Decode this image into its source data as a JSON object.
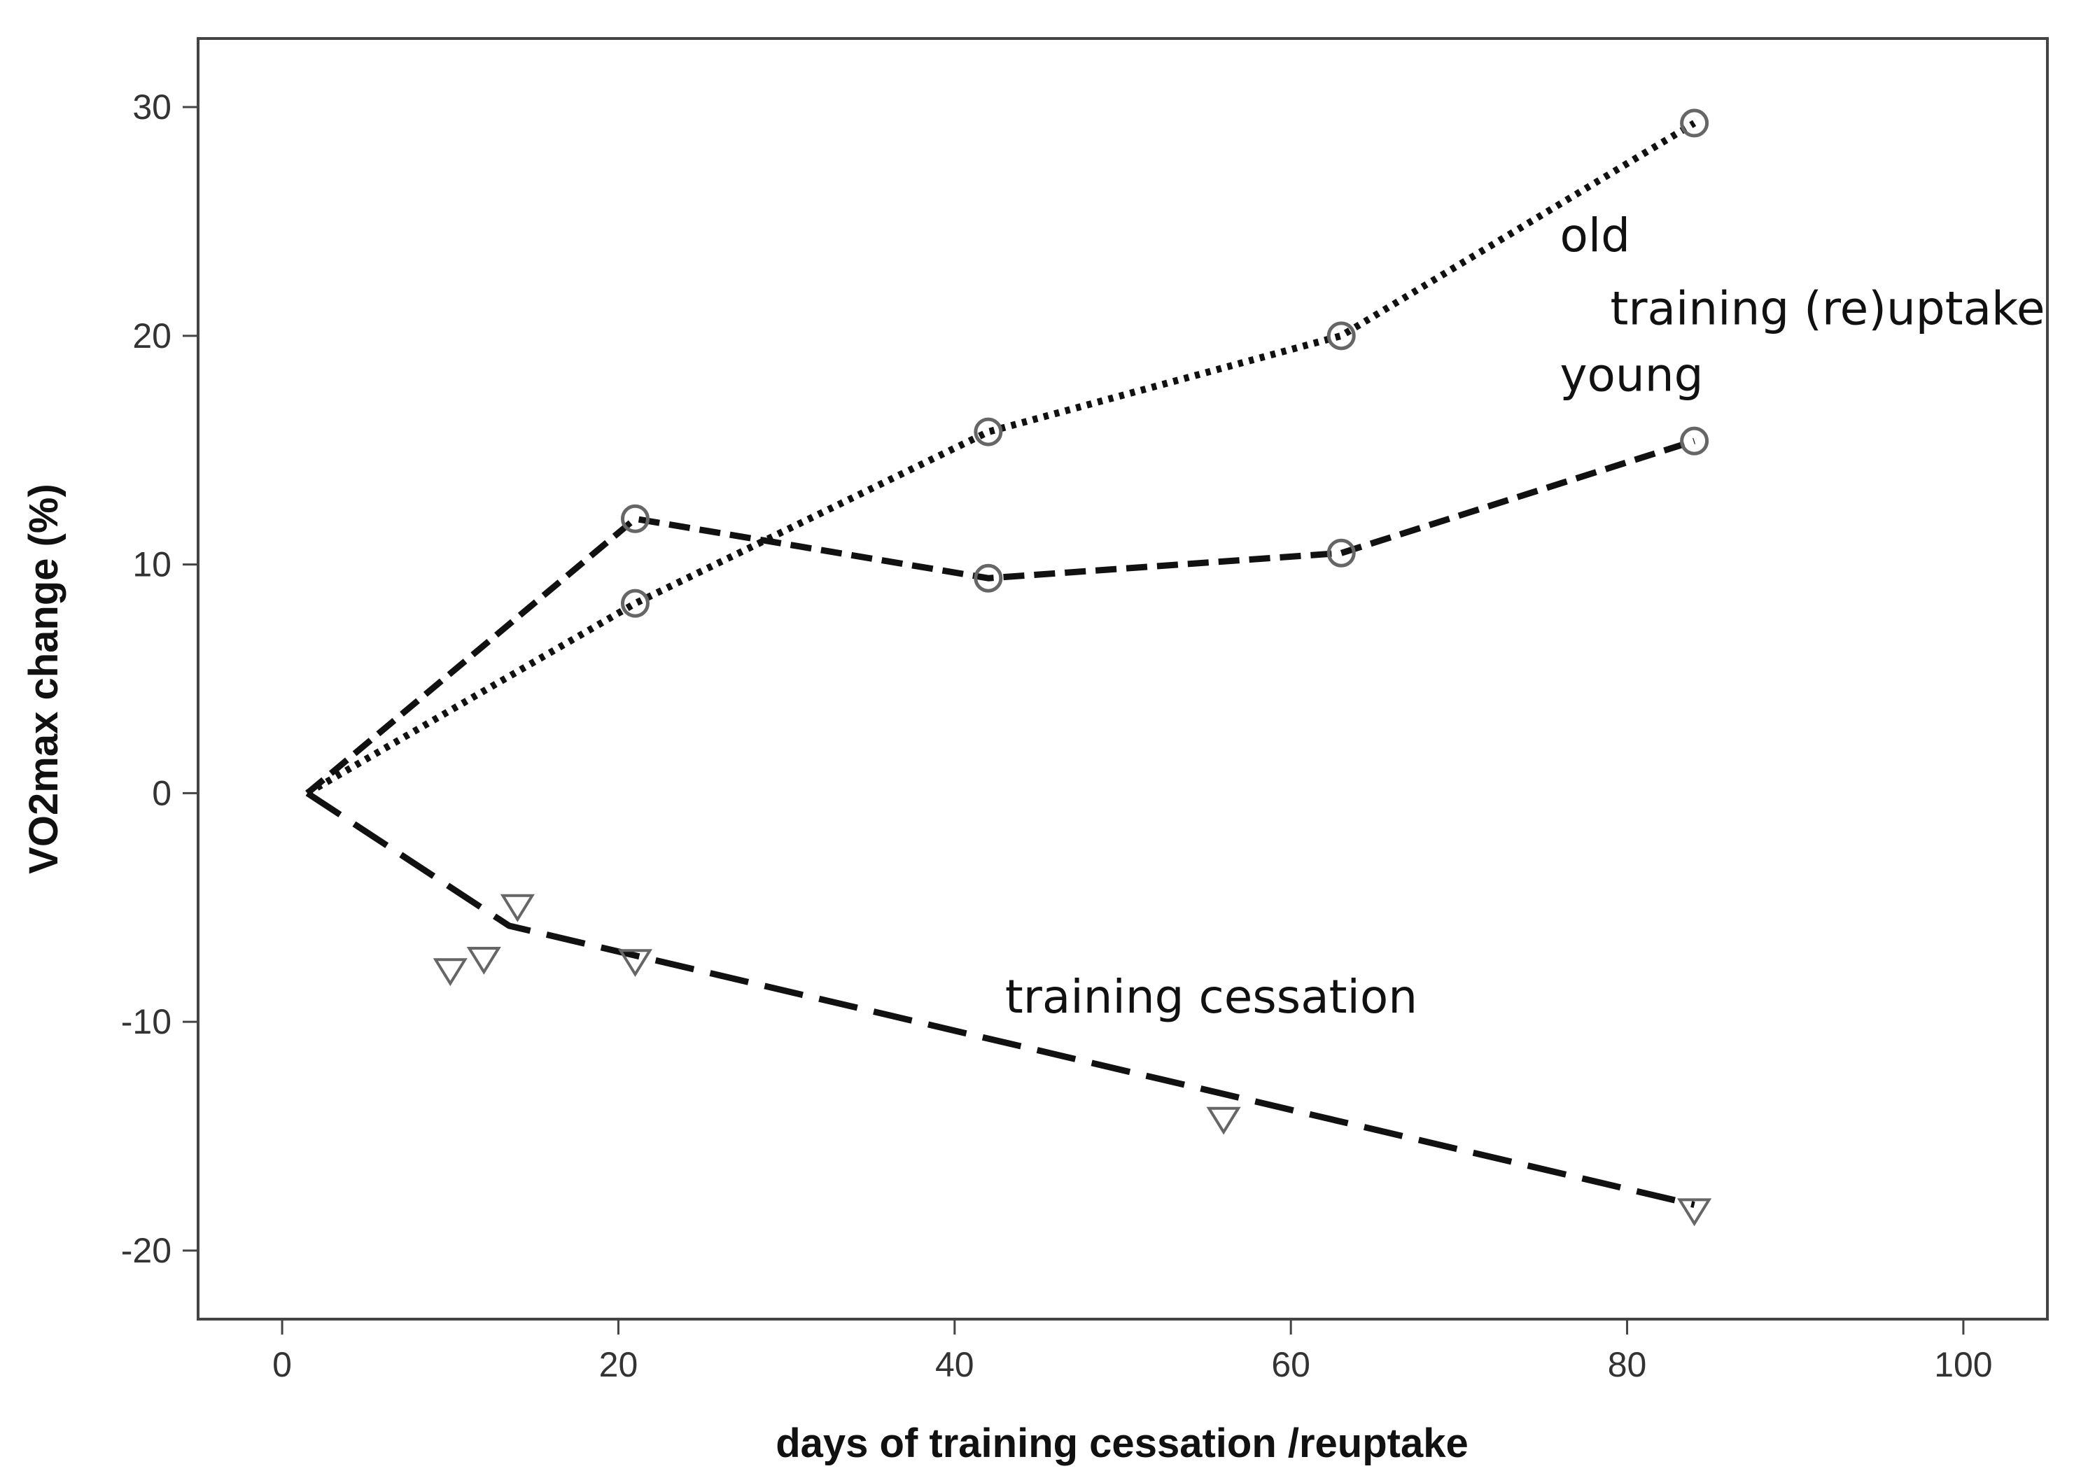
{
  "chart_data": {
    "type": "line",
    "title": "",
    "xlabel": "days of training cessation /reuptake",
    "ylabel": "VO2max change (%)",
    "xlim": [
      -5,
      105
    ],
    "ylim": [
      -23,
      33
    ],
    "x_ticks": [
      0,
      20,
      40,
      60,
      80,
      100
    ],
    "y_ticks": [
      -20,
      -10,
      0,
      10,
      20,
      30
    ],
    "grid": false,
    "series": [
      {
        "name": "old",
        "line_style": "dotted",
        "marker": "circle",
        "line": [
          [
            1.5,
            0
          ],
          [
            21,
            8.3
          ],
          [
            42,
            15.8
          ],
          [
            63,
            20
          ],
          [
            84,
            29.3
          ]
        ],
        "points": [
          [
            21,
            8.3
          ],
          [
            42,
            15.8
          ],
          [
            63,
            20
          ],
          [
            84,
            29.3
          ]
        ]
      },
      {
        "name": "young",
        "line_style": "dashed",
        "marker": "circle",
        "line": [
          [
            1.5,
            0
          ],
          [
            21,
            12
          ],
          [
            42,
            9.4
          ],
          [
            63,
            10.5
          ],
          [
            84,
            15.4
          ]
        ],
        "points": [
          [
            21,
            12
          ],
          [
            42,
            9.4
          ],
          [
            63,
            10.5
          ],
          [
            84,
            15.4
          ]
        ]
      },
      {
        "name": "training cessation",
        "line_style": "long-dashed",
        "marker": "triangle-down",
        "line": [
          [
            1.5,
            0
          ],
          [
            13.5,
            -5.8
          ],
          [
            84,
            -18
          ]
        ],
        "points": [
          [
            10,
            -7.8
          ],
          [
            12,
            -7.3
          ],
          [
            14,
            -5
          ],
          [
            21,
            -7.4
          ],
          [
            56,
            -14.3
          ],
          [
            84,
            -18.3
          ]
        ]
      }
    ],
    "annotations": [
      {
        "text": "old",
        "x": 76,
        "y": 23.7
      },
      {
        "text": "training (re)uptake",
        "x": 79,
        "y": 20.5
      },
      {
        "text": "young",
        "x": 76,
        "y": 17.6
      },
      {
        "text": "training cessation",
        "x": 43,
        "y": -9.6
      }
    ],
    "colors": {
      "line": "#111111",
      "marker": "#666666",
      "frame": "#444444",
      "text": "#111111",
      "tick_text": "#333333"
    }
  }
}
